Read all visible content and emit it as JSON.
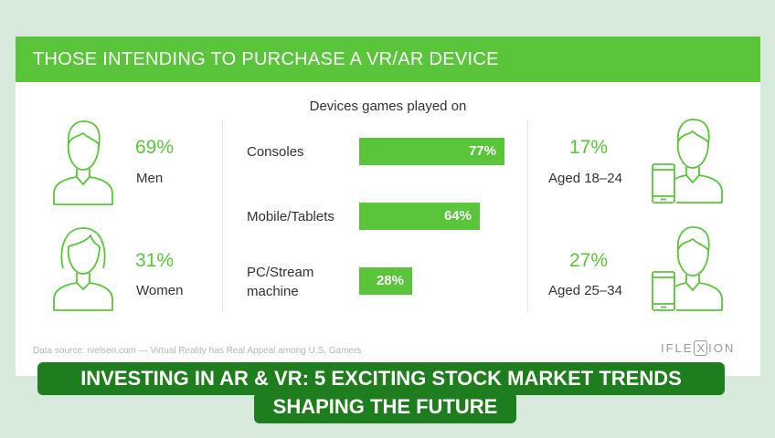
{
  "header": {
    "title": "THOSE INTENDING TO PURCHASE A VR/AR DEVICE"
  },
  "left_stats": [
    {
      "value": "69%",
      "label": "Men",
      "icon": "man-icon"
    },
    {
      "value": "31%",
      "label": "Women",
      "icon": "woman-icon"
    }
  ],
  "right_stats": [
    {
      "value": "17%",
      "label": "Aged 18–24",
      "icon": "man-with-phone-icon"
    },
    {
      "value": "27%",
      "label": "Aged 25–34",
      "icon": "man-with-phone-icon"
    }
  ],
  "chart_data": {
    "type": "bar",
    "orientation": "horizontal",
    "title": "Devices games played on",
    "categories": [
      "Consoles",
      "Mobile/Tablets",
      "PC/Stream machine"
    ],
    "category_lines": [
      [
        "Consoles"
      ],
      [
        "Mobile/Tablets"
      ],
      [
        "PC/Stream",
        "machine"
      ]
    ],
    "values": [
      77,
      64,
      28
    ],
    "value_labels": [
      "77%",
      "64%",
      "28%"
    ],
    "xlim": [
      0,
      100
    ],
    "grid": false,
    "bar_color": "#5ac43b"
  },
  "footer": {
    "source": "Data source: nielsen.com — Virtual Reality has Real Appeal among U.S. Gamers",
    "logo": {
      "before": "IFLE",
      "boxed": "X",
      "after": "ION"
    }
  },
  "banner": {
    "line1": "INVESTING IN AR & VR: 5 EXCITING STOCK MARKET TRENDS",
    "line2": "SHAPING THE FUTURE"
  },
  "colors": {
    "accent": "#5ac43b",
    "banner": "#1e7d1c",
    "background": "#d8eadc"
  }
}
